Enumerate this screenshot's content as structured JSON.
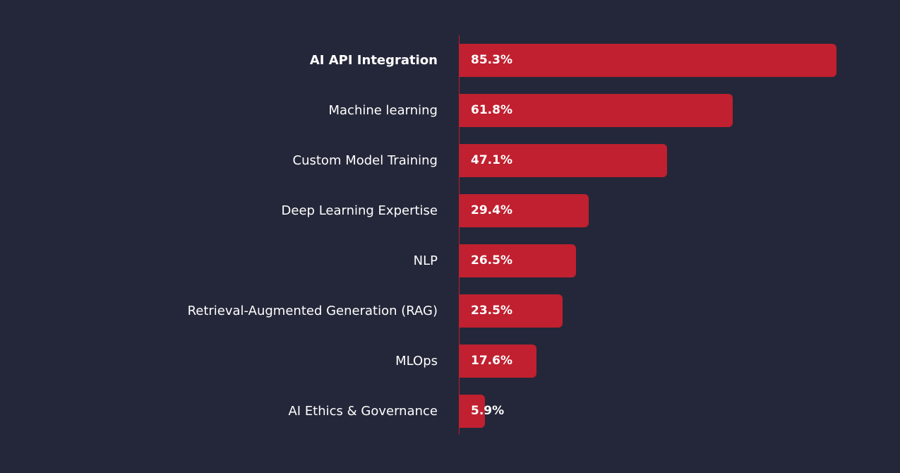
{
  "colors": {
    "background": "#242739",
    "bar": "#c0202f",
    "axis": "#c0202f",
    "text": "#ffffff"
  },
  "chart_data": {
    "type": "bar",
    "orientation": "horizontal",
    "categories": [
      "AI API Integration",
      "Machine learning",
      "Custom Model Training",
      "Deep Learning Expertise",
      "NLP",
      "Retrieval-Augmented Generation (RAG)",
      "MLOps",
      "AI Ethics & Governance"
    ],
    "values": [
      85.3,
      61.8,
      47.1,
      29.4,
      26.5,
      23.5,
      17.6,
      5.9
    ],
    "value_labels": [
      "85.3%",
      "61.8%",
      "47.1%",
      "29.4%",
      "26.5%",
      "23.5%",
      "17.6%",
      "5.9%"
    ],
    "unit": "%",
    "title": "",
    "xlabel": "",
    "ylabel": "",
    "xlim": [
      0,
      85.3
    ],
    "grid": false,
    "legend": "none"
  }
}
